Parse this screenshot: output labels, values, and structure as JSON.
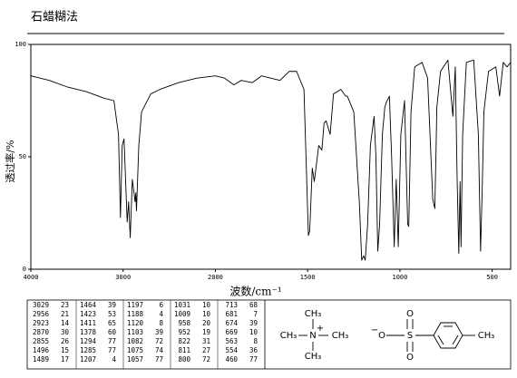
{
  "chart_data": {
    "type": "line",
    "title": "石蜡糊法",
    "x_label": "波数/cm⁻¹",
    "y_label": "透过率/%",
    "xlim": [
      4000,
      400
    ],
    "xscale_break": 2000,
    "xticks": [
      4000,
      3000,
      2000,
      1500,
      1000,
      500
    ],
    "ylim": [
      0,
      100
    ],
    "yticks": [
      0,
      50,
      100
    ],
    "color": "#000000",
    "x": [
      4000,
      3800,
      3600,
      3400,
      3200,
      3100,
      3050,
      3029,
      3010,
      2990,
      2956,
      2940,
      2923,
      2900,
      2870,
      2862,
      2855,
      2830,
      2800,
      2700,
      2600,
      2400,
      2200,
      2000,
      1950,
      1900,
      1860,
      1800,
      1750,
      1700,
      1650,
      1600,
      1560,
      1520,
      1496,
      1489,
      1475,
      1464,
      1440,
      1423,
      1411,
      1400,
      1378,
      1360,
      1320,
      1294,
      1285,
      1250,
      1220,
      1207,
      1197,
      1188,
      1175,
      1160,
      1140,
      1130,
      1120,
      1110,
      1103,
      1095,
      1082,
      1075,
      1057,
      1045,
      1031,
      1020,
      1009,
      995,
      975,
      958,
      952,
      940,
      920,
      880,
      850,
      822,
      811,
      805,
      800,
      780,
      740,
      713,
      700,
      690,
      681,
      674,
      669,
      660,
      640,
      600,
      575,
      563,
      554,
      545,
      520,
      480,
      460,
      440,
      420,
      400
    ],
    "values": [
      86,
      84,
      81,
      79,
      76,
      75,
      60,
      23,
      55,
      58,
      21,
      30,
      14,
      40,
      30,
      34,
      26,
      55,
      70,
      78,
      80,
      83,
      85,
      86,
      85,
      82,
      84,
      83,
      86,
      85,
      84,
      88,
      88,
      80,
      15,
      17,
      45,
      39,
      55,
      53,
      65,
      66,
      60,
      78,
      80,
      77,
      77,
      70,
      30,
      4,
      6,
      4,
      20,
      55,
      68,
      50,
      8,
      20,
      39,
      60,
      72,
      74,
      77,
      50,
      10,
      40,
      10,
      60,
      75,
      20,
      19,
      70,
      90,
      92,
      85,
      31,
      27,
      50,
      72,
      88,
      93,
      68,
      90,
      40,
      7,
      39,
      10,
      60,
      92,
      93,
      60,
      8,
      36,
      70,
      88,
      90,
      77,
      92,
      90,
      92
    ]
  },
  "peak_table": {
    "columns": [
      [
        [
          3029,
          23
        ],
        [
          2956,
          21
        ],
        [
          2923,
          14
        ],
        [
          2870,
          30
        ],
        [
          2855,
          26
        ],
        [
          1496,
          15
        ],
        [
          1489,
          17
        ]
      ],
      [
        [
          1464,
          39
        ],
        [
          1423,
          53
        ],
        [
          1411,
          65
        ],
        [
          1378,
          60
        ],
        [
          1294,
          77
        ],
        [
          1285,
          77
        ],
        [
          1207,
          4
        ]
      ],
      [
        [
          1197,
          6
        ],
        [
          1188,
          4
        ],
        [
          1120,
          8
        ],
        [
          1103,
          39
        ],
        [
          1082,
          72
        ],
        [
          1075,
          74
        ],
        [
          1057,
          77
        ]
      ],
      [
        [
          1031,
          10
        ],
        [
          1009,
          10
        ],
        [
          958,
          20
        ],
        [
          952,
          19
        ],
        [
          822,
          31
        ],
        [
          811,
          27
        ],
        [
          800,
          72
        ]
      ],
      [
        [
          713,
          68
        ],
        [
          681,
          7
        ],
        [
          674,
          39
        ],
        [
          669,
          10
        ],
        [
          563,
          8
        ],
        [
          554,
          36
        ],
        [
          460,
          77
        ]
      ]
    ]
  },
  "structure": {
    "labels": [
      "CH₃",
      "CH₃",
      "N",
      "+",
      "CH₃",
      "CH₃",
      "−",
      "O",
      "S",
      "O",
      "O",
      "CH₃"
    ]
  }
}
